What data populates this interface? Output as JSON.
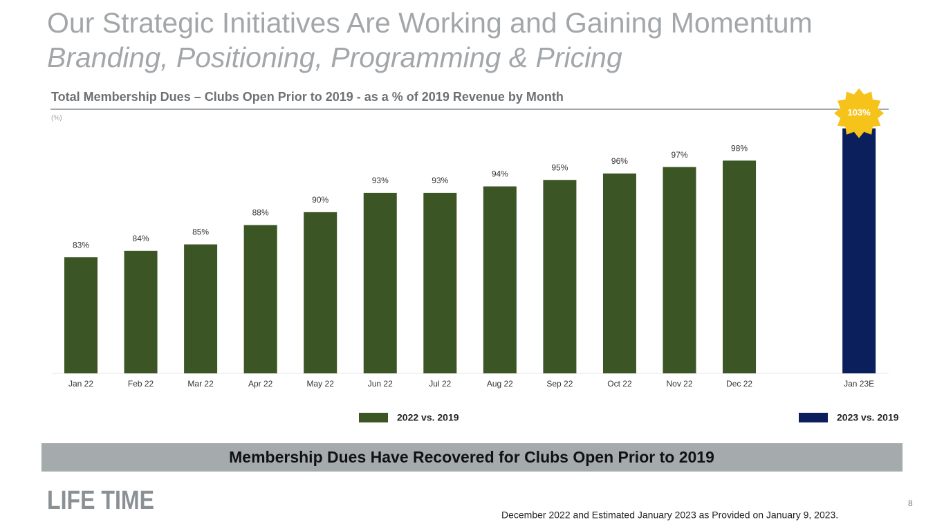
{
  "slide": {
    "title": "Our Strategic Initiatives Are Working and Gaining Momentum",
    "subtitle": "Branding, Positioning, Programming & Pricing",
    "banner": "Membership Dues Have Recovered for Clubs Open Prior to 2019",
    "logo": "LIFE TIME",
    "footnote": "December 2022 and Estimated  January 2023 as Provided on January 9, 2023.",
    "page_number": "8"
  },
  "chart_data": {
    "type": "bar",
    "title": "Total Membership Dues – Clubs Open Prior to 2019 - as a % of 2019 Revenue by Month",
    "unit_note": "(%)",
    "categories": [
      "Jan 22",
      "Feb 22",
      "Mar 22",
      "Apr 22",
      "May 22",
      "Jun 22",
      "Jul 22",
      "Aug 22",
      "Sep 22",
      "Oct 22",
      "Nov 22",
      "Dec 22",
      null,
      "Jan 23E"
    ],
    "series": [
      {
        "name": "2022 vs. 2019",
        "color": "#3b5524",
        "values": [
          83,
          84,
          85,
          88,
          90,
          93,
          93,
          94,
          95,
          96,
          97,
          98,
          null,
          null
        ],
        "value_labels": [
          "83%",
          "84%",
          "85%",
          "88%",
          "90%",
          "93%",
          "93%",
          "94%",
          "95%",
          "96%",
          "97%",
          "98%",
          null,
          null
        ]
      },
      {
        "name": "2023 vs. 2019",
        "color": "#0b1f5c",
        "values": [
          null,
          null,
          null,
          null,
          null,
          null,
          null,
          null,
          null,
          null,
          null,
          null,
          null,
          103
        ],
        "value_labels": [
          null,
          null,
          null,
          null,
          null,
          null,
          null,
          null,
          null,
          null,
          null,
          null,
          null,
          "103%"
        ]
      }
    ],
    "badge_color": "#f6c31a",
    "ylim": [
      65,
      105
    ],
    "grid": false
  }
}
